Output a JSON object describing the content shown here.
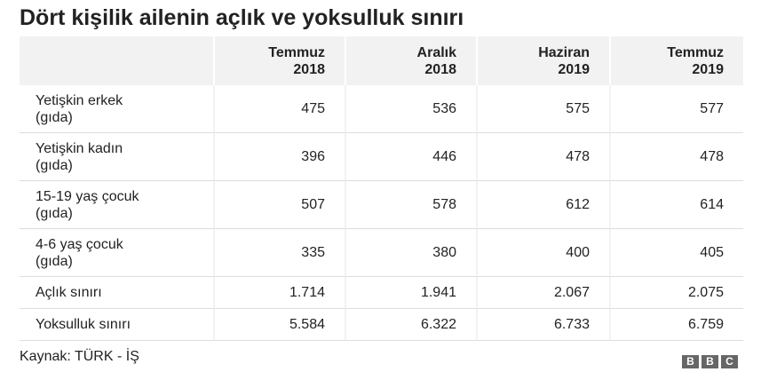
{
  "title": "Dört kişilik ailenin açlık ve yoksulluk sınırı",
  "chart_data": {
    "type": "table",
    "title": "Dört kişilik ailenin açlık ve yoksulluk sınırı",
    "columns": [
      {
        "line1": "Temmuz",
        "line2": "2018"
      },
      {
        "line1": "Aralık",
        "line2": "2018"
      },
      {
        "line1": "Haziran",
        "line2": "2019"
      },
      {
        "line1": "Temmuz",
        "line2": "2019"
      }
    ],
    "rows": [
      {
        "label_line1": "Yetişkin erkek",
        "label_line2": "(gıda)",
        "values": [
          "475",
          "536",
          "575",
          "577"
        ]
      },
      {
        "label_line1": "Yetişkin kadın",
        "label_line2": "(gıda)",
        "values": [
          "396",
          "446",
          "478",
          "478"
        ]
      },
      {
        "label_line1": "15-19 yaş çocuk",
        "label_line2": "(gıda)",
        "values": [
          "507",
          "578",
          "612",
          "614"
        ]
      },
      {
        "label_line1": "4-6 yaş çocuk",
        "label_line2": "(gıda)",
        "values": [
          "335",
          "380",
          "400",
          "405"
        ]
      },
      {
        "label_line1": "Açlık sınırı",
        "values": [
          "1.714",
          "1.941",
          "2.067",
          "2.075"
        ]
      },
      {
        "label_line1": "Yoksulluk sınırı",
        "values": [
          "5.584",
          "6.322",
          "6.733",
          "6.759"
        ]
      }
    ]
  },
  "source": "Kaynak: TÜRK - İŞ",
  "logo": {
    "letters": [
      "B",
      "B",
      "C"
    ]
  },
  "colors": {
    "header_bg": "#f2f2f2",
    "text": "#222222",
    "logo_bg": "#666666"
  }
}
